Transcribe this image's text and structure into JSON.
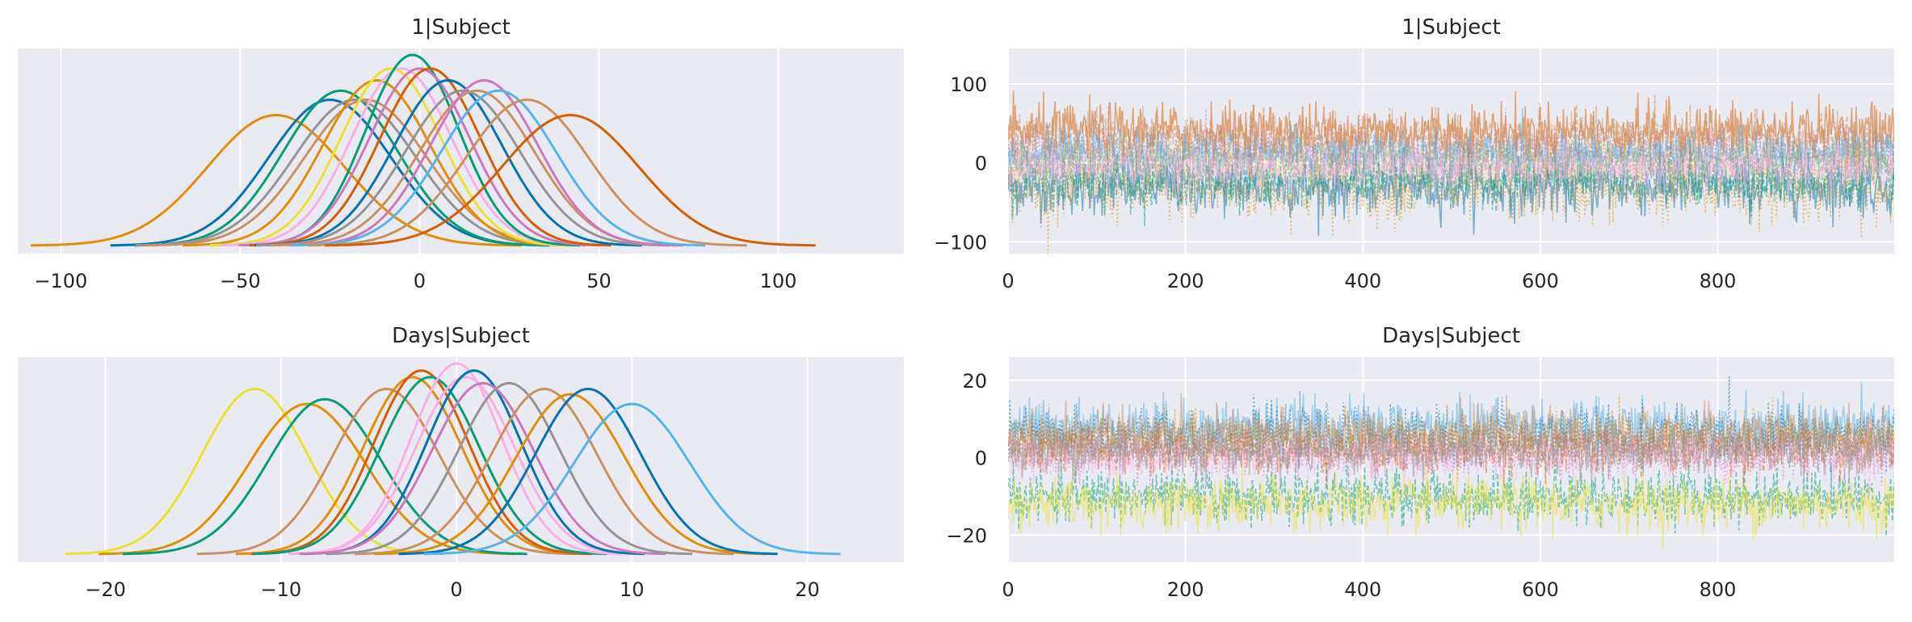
{
  "palette": [
    "#0173b2",
    "#de8f05",
    "#029e73",
    "#d55e00",
    "#cc78bc",
    "#ca9161",
    "#fbafe4",
    "#949494",
    "#ece133",
    "#56b4e9"
  ],
  "chart_data": [
    {
      "type": "line",
      "subtype": "kde",
      "title": "1|Subject",
      "xlabel": "",
      "ylabel": "",
      "xlim": [
        -112,
        135
      ],
      "xticks": [
        -100,
        -50,
        0,
        50,
        100
      ],
      "xtick_labels": [
        "−100",
        "−50",
        "0",
        "50",
        "100"
      ],
      "yticks_visible": false,
      "grid": true,
      "series": [
        {
          "mean": -40,
          "sd": 19,
          "color": "#de8f05"
        },
        {
          "mean": -25,
          "sd": 17,
          "color": "#0173b2"
        },
        {
          "mean": -22,
          "sd": 16,
          "color": "#029e73"
        },
        {
          "mean": -18,
          "sd": 17,
          "color": "#949494"
        },
        {
          "mean": -15,
          "sd": 17,
          "color": "#ca9161"
        },
        {
          "mean": -12,
          "sd": 15,
          "color": "#de8f05"
        },
        {
          "mean": -8,
          "sd": 14,
          "color": "#ece133"
        },
        {
          "mean": -5,
          "sd": 14,
          "color": "#fbafe4"
        },
        {
          "mean": -2,
          "sd": 13,
          "color": "#029e73"
        },
        {
          "mean": 0,
          "sd": 14,
          "color": "#cc78bc"
        },
        {
          "mean": 3,
          "sd": 14,
          "color": "#d55e00"
        },
        {
          "mean": 8,
          "sd": 15,
          "color": "#0173b2"
        },
        {
          "mean": 12,
          "sd": 16,
          "color": "#949494"
        },
        {
          "mean": 16,
          "sd": 16,
          "color": "#ca9161"
        },
        {
          "mean": 18,
          "sd": 15,
          "color": "#cc78bc"
        },
        {
          "mean": 22,
          "sd": 16,
          "color": "#56b4e9"
        },
        {
          "mean": 30,
          "sd": 17,
          "color": "#ca9161"
        },
        {
          "mean": 42,
          "sd": 19,
          "color": "#d55e00"
        }
      ]
    },
    {
      "type": "line",
      "subtype": "trace",
      "title": "1|Subject",
      "xlabel": "",
      "ylabel": "",
      "xlim": [
        0,
        999
      ],
      "ylim": [
        -115,
        145
      ],
      "xticks": [
        0,
        200,
        400,
        600,
        800
      ],
      "xtick_labels": [
        "0",
        "200",
        "400",
        "600",
        "800"
      ],
      "yticks": [
        -100,
        0,
        100
      ],
      "ytick_labels": [
        "−100",
        "0",
        "100"
      ],
      "grid": true,
      "draws": 1000,
      "series": [
        {
          "mean": -30,
          "sd": 18,
          "color": "#0173b2"
        },
        {
          "mean": -35,
          "sd": 20,
          "color": "#de8f05"
        },
        {
          "mean": -20,
          "sd": 16,
          "color": "#029e73"
        },
        {
          "mean": 40,
          "sd": 18,
          "color": "#d55e00"
        },
        {
          "mean": 15,
          "sd": 15,
          "color": "#cc78bc"
        },
        {
          "mean": 30,
          "sd": 17,
          "color": "#ca9161"
        },
        {
          "mean": 10,
          "sd": 14,
          "color": "#56b4e9"
        },
        {
          "mean": 0,
          "sd": 14,
          "color": "#ece133"
        },
        {
          "mean": 5,
          "sd": 15,
          "color": "#949494"
        },
        {
          "mean": -8,
          "sd": 13,
          "color": "#fbafe4"
        }
      ]
    },
    {
      "type": "line",
      "subtype": "kde",
      "title": "Days|Subject",
      "xlabel": "",
      "ylabel": "",
      "xlim": [
        -25,
        25.5
      ],
      "xticks": [
        -20,
        -10,
        0,
        10,
        20
      ],
      "xtick_labels": [
        "−20",
        "−10",
        "0",
        "10",
        "20"
      ],
      "yticks_visible": false,
      "grid": true,
      "series": [
        {
          "mean": -11.5,
          "sd": 3.0,
          "color": "#ece133"
        },
        {
          "mean": -8.5,
          "sd": 3.3,
          "color": "#de8f05"
        },
        {
          "mean": -7.5,
          "sd": 3.2,
          "color": "#029e73"
        },
        {
          "mean": -4,
          "sd": 3.0,
          "color": "#ca9161"
        },
        {
          "mean": -2.5,
          "sd": 2.8,
          "color": "#de8f05"
        },
        {
          "mean": -2,
          "sd": 2.7,
          "color": "#d55e00"
        },
        {
          "mean": -1.5,
          "sd": 2.8,
          "color": "#029e73"
        },
        {
          "mean": 0,
          "sd": 2.6,
          "color": "#fbafe4"
        },
        {
          "mean": 0.5,
          "sd": 2.8,
          "color": "#fbafe4"
        },
        {
          "mean": 1,
          "sd": 2.7,
          "color": "#0173b2"
        },
        {
          "mean": 1.5,
          "sd": 2.9,
          "color": "#cc78bc"
        },
        {
          "mean": 3,
          "sd": 2.9,
          "color": "#949494"
        },
        {
          "mean": 5,
          "sd": 3.0,
          "color": "#ca9161"
        },
        {
          "mean": 6.5,
          "sd": 3.1,
          "color": "#de8f05"
        },
        {
          "mean": 7.5,
          "sd": 3.0,
          "color": "#0173b2"
        },
        {
          "mean": 10,
          "sd": 3.3,
          "color": "#56b4e9"
        }
      ]
    },
    {
      "type": "line",
      "subtype": "trace",
      "title": "Days|Subject",
      "xlabel": "",
      "ylabel": "",
      "xlim": [
        0,
        999
      ],
      "ylim": [
        -27,
        26
      ],
      "xticks": [
        0,
        200,
        400,
        600,
        800
      ],
      "xtick_labels": [
        "0",
        "200",
        "400",
        "600",
        "800"
      ],
      "yticks": [
        -20,
        0,
        20
      ],
      "ytick_labels": [
        "−20",
        "0",
        "20"
      ],
      "grid": true,
      "draws": 1000,
      "series": [
        {
          "mean": 8,
          "sd": 3.5,
          "color": "#56b4e9"
        },
        {
          "mean": 6,
          "sd": 3.5,
          "color": "#0173b2"
        },
        {
          "mean": -10,
          "sd": 3.5,
          "color": "#029e73"
        },
        {
          "mean": -12,
          "sd": 3.5,
          "color": "#ece133"
        },
        {
          "mean": 5,
          "sd": 3.2,
          "color": "#de8f05"
        },
        {
          "mean": 2,
          "sd": 3,
          "color": "#d55e00"
        },
        {
          "mean": 6,
          "sd": 3.2,
          "color": "#ca9161"
        },
        {
          "mean": 1,
          "sd": 3,
          "color": "#cc78bc"
        },
        {
          "mean": 0,
          "sd": 2.8,
          "color": "#fbafe4"
        },
        {
          "mean": 2,
          "sd": 3,
          "color": "#949494"
        }
      ]
    }
  ]
}
